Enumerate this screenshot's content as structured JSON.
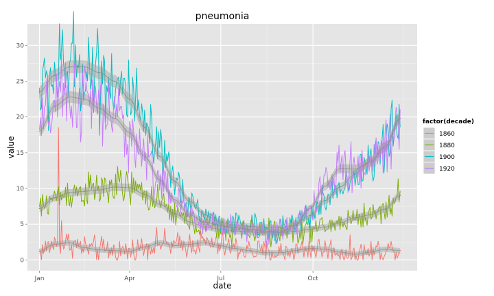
{
  "chart_data": {
    "type": "line",
    "title": "pneumonia",
    "xlabel": "date",
    "ylabel": "value",
    "ylim": [
      -1.5,
      33
    ],
    "yticks": [
      0,
      5,
      10,
      15,
      20,
      25,
      30
    ],
    "x_tick_labels": [
      "Jan",
      "Apr",
      "Jul",
      "Oct"
    ],
    "x_tick_days": [
      0,
      90,
      181,
      273
    ],
    "x_day_range": [
      -12,
      377
    ],
    "grid": true,
    "legend": {
      "title": "factor(decade)",
      "position": "right"
    },
    "smoothed": true,
    "series": [
      {
        "name": "1860",
        "color": "#F8766D",
        "smooth": [
          [
            0,
            1.2
          ],
          [
            15,
            2.2
          ],
          [
            30,
            2.4
          ],
          [
            45,
            1.7
          ],
          [
            60,
            1.4
          ],
          [
            75,
            1.3
          ],
          [
            90,
            1.2
          ],
          [
            105,
            1.8
          ],
          [
            120,
            2.4
          ],
          [
            135,
            2.0
          ],
          [
            150,
            2.2
          ],
          [
            165,
            2.4
          ],
          [
            180,
            2.0
          ],
          [
            195,
            1.6
          ],
          [
            210,
            1.3
          ],
          [
            225,
            1.0
          ],
          [
            240,
            1.0
          ],
          [
            255,
            1.3
          ],
          [
            270,
            1.6
          ],
          [
            285,
            1.5
          ],
          [
            300,
            1.1
          ],
          [
            315,
            0.8
          ],
          [
            330,
            1.1
          ],
          [
            345,
            1.5
          ],
          [
            360,
            1.3
          ]
        ],
        "spikes": [
          [
            19,
            18.5
          ],
          [
            22,
            5.5
          ]
        ]
      },
      {
        "name": "1880",
        "color": "#7CAE00",
        "smooth": [
          [
            0,
            7.2
          ],
          [
            15,
            8.7
          ],
          [
            30,
            9.4
          ],
          [
            45,
            9.6
          ],
          [
            60,
            9.8
          ],
          [
            75,
            10.2
          ],
          [
            90,
            10.1
          ],
          [
            105,
            9.2
          ],
          [
            120,
            7.8
          ],
          [
            135,
            6.5
          ],
          [
            150,
            5.3
          ],
          [
            165,
            4.6
          ],
          [
            180,
            4.3
          ],
          [
            195,
            4.0
          ],
          [
            210,
            3.9
          ],
          [
            225,
            3.8
          ],
          [
            240,
            3.8
          ],
          [
            255,
            4.0
          ],
          [
            270,
            4.3
          ],
          [
            285,
            4.6
          ],
          [
            300,
            5.2
          ],
          [
            315,
            5.9
          ],
          [
            330,
            6.3
          ],
          [
            345,
            7.1
          ],
          [
            360,
            9.0
          ]
        ],
        "spikes": []
      },
      {
        "name": "1900",
        "color": "#00BFC4",
        "smooth": [
          [
            0,
            23.5
          ],
          [
            15,
            25.8
          ],
          [
            30,
            27.0
          ],
          [
            45,
            27.0
          ],
          [
            60,
            26.2
          ],
          [
            75,
            25.0
          ],
          [
            90,
            22.5
          ],
          [
            105,
            18.5
          ],
          [
            120,
            14.5
          ],
          [
            135,
            11.0
          ],
          [
            150,
            8.2
          ],
          [
            165,
            6.3
          ],
          [
            180,
            5.3
          ],
          [
            195,
            4.9
          ],
          [
            210,
            4.7
          ],
          [
            225,
            4.6
          ],
          [
            240,
            4.5
          ],
          [
            255,
            4.9
          ],
          [
            270,
            6.2
          ],
          [
            285,
            8.3
          ],
          [
            300,
            10.2
          ],
          [
            315,
            12.0
          ],
          [
            330,
            13.8
          ],
          [
            345,
            15.8
          ],
          [
            360,
            19.8
          ]
        ],
        "spikes": []
      },
      {
        "name": "1920",
        "color": "#C77CFF",
        "smooth": [
          [
            0,
            18.0
          ],
          [
            15,
            21.5
          ],
          [
            30,
            22.8
          ],
          [
            45,
            22.5
          ],
          [
            60,
            21.2
          ],
          [
            75,
            19.8
          ],
          [
            90,
            17.8
          ],
          [
            105,
            14.5
          ],
          [
            120,
            11.2
          ],
          [
            135,
            8.4
          ],
          [
            150,
            6.3
          ],
          [
            165,
            5.3
          ],
          [
            180,
            4.8
          ],
          [
            195,
            4.5
          ],
          [
            210,
            4.3
          ],
          [
            225,
            4.0
          ],
          [
            240,
            3.9
          ],
          [
            255,
            4.8
          ],
          [
            270,
            7.2
          ],
          [
            285,
            10.3
          ],
          [
            300,
            12.8
          ],
          [
            315,
            12.7
          ],
          [
            330,
            13.6
          ],
          [
            345,
            15.8
          ],
          [
            360,
            19.8
          ]
        ],
        "spikes": [
          [
            -1,
            12.5
          ]
        ]
      }
    ]
  }
}
